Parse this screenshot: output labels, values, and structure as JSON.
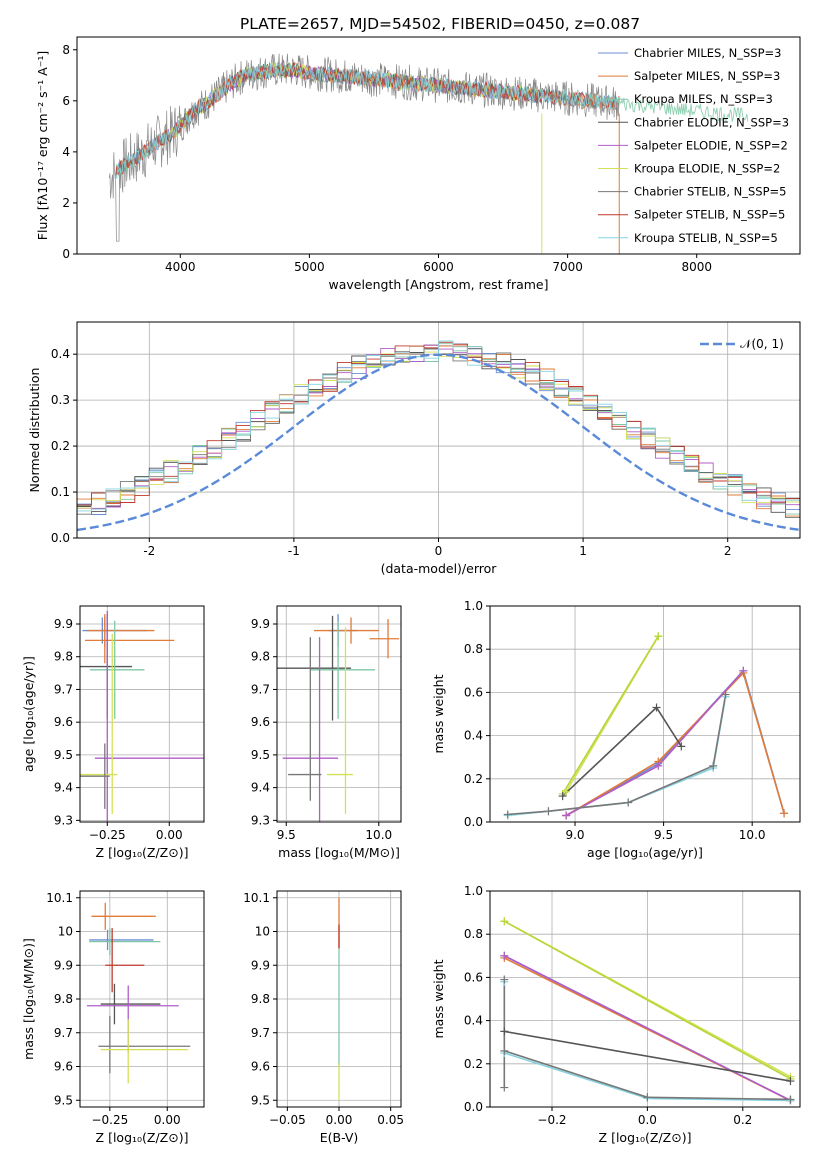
{
  "page_title": "PLATE=2657, MJD=54502, FIBERID=0450, z=0.087",
  "colors": {
    "series": [
      "#6a8fd0",
      "#e07b39",
      "#7fc8a6",
      "#555555",
      "#b15dc8",
      "#d4e157",
      "#777777",
      "#c0392b",
      "#86d3e0"
    ],
    "gaussian": "#5b8ad8",
    "grid": "#b0b0b0"
  },
  "chart_data": [
    {
      "id": "spectrum",
      "type": "line",
      "title": "PLATE=2657, MJD=54502, FIBERID=0450, z=0.087",
      "xlabel": "wavelength [Angstrom, rest frame]",
      "ylabel": "Flux [fλ10⁻¹⁷ erg cm⁻² s⁻¹ A⁻¹]",
      "xlim": [
        3200,
        8800
      ],
      "ylim": [
        0,
        8.5
      ],
      "xticks": [
        4000,
        5000,
        6000,
        7000,
        8000
      ],
      "yticks": [
        0,
        2,
        4,
        6,
        8
      ],
      "grid": false,
      "legend_position": "top-right",
      "legend": [
        "Chabrier MILES, N_SSP=3",
        "Salpeter MILES, N_SSP=3",
        "Kroupa MILES, N_SSP=3",
        "Chabrier ELODIE, N_SSP=3",
        "Salpeter ELODIE, N_SSP=2",
        "Kroupa ELODIE, N_SSP=2",
        "Chabrier STELIB, N_SSP=5",
        "Salpeter STELIB, N_SSP=5",
        "Kroupa STELIB, N_SSP=5"
      ],
      "continuum": {
        "x": [
          3500,
          3600,
          3700,
          3800,
          3900,
          4000,
          4100,
          4200,
          4300,
          4400,
          4500,
          4600,
          4700,
          4800,
          4900,
          5000,
          5200,
          5400,
          5600,
          5800,
          6000,
          6200,
          6400,
          6600,
          6800,
          7000,
          7200,
          7400,
          7600,
          7800,
          8000,
          8200,
          8400
        ],
        "y": [
          3.2,
          3.6,
          3.9,
          4.3,
          4.6,
          5.0,
          5.6,
          5.9,
          6.3,
          6.7,
          7.0,
          7.1,
          7.2,
          7.2,
          7.2,
          7.1,
          7.0,
          6.9,
          6.8,
          6.7,
          6.6,
          6.5,
          6.4,
          6.3,
          6.2,
          6.1,
          6.0,
          5.9,
          5.8,
          5.7,
          5.6,
          5.5,
          5.4
        ]
      },
      "model_ranges": [
        [
          3500,
          7400
        ],
        [
          3500,
          7400
        ],
        [
          3500,
          8400
        ],
        [
          3900,
          6800
        ],
        [
          3900,
          6800
        ],
        [
          3900,
          6800
        ],
        [
          3500,
          7400
        ],
        [
          3500,
          7400
        ],
        [
          3500,
          7400
        ]
      ],
      "observed_range": [
        3450,
        7400
      ]
    },
    {
      "id": "residuals",
      "type": "line",
      "xlabel": "(data-model)/error",
      "ylabel": "Normed distribution",
      "xlim": [
        -2.5,
        2.5
      ],
      "ylim": [
        0,
        0.47
      ],
      "xticks": [
        -2,
        -1,
        0,
        1,
        2
      ],
      "yticks": [
        0.0,
        0.1,
        0.2,
        0.3,
        0.4
      ],
      "grid": true,
      "legend_position": "top-right",
      "legend": [
        "𝒩(0, 1)"
      ],
      "bin_width": 0.1
    },
    {
      "id": "age-vs-Z",
      "type": "scatter",
      "xlabel": "Z [log₁₀(Z/Z⊙)]",
      "ylabel": "age  [log₁₀(age/yr)]",
      "xlim": [
        -0.36,
        0.14
      ],
      "ylim": [
        9.295,
        9.955
      ],
      "xticks": [
        -0.25,
        0.0
      ],
      "xtick_labels": [
        "−0.25",
        "0.00"
      ],
      "yticks": [
        9.3,
        9.4,
        9.5,
        9.6,
        9.7,
        9.8,
        9.9
      ],
      "grid": true,
      "points": [
        {
          "x": -0.27,
          "y": 9.88,
          "xerr": [
            0.08,
            0.18
          ],
          "yerr": [
            0.04,
            0.04
          ],
          "c": 0
        },
        {
          "x": -0.26,
          "y": 9.88,
          "xerr": [
            0.07,
            0.2
          ],
          "yerr": [
            0.05,
            0.05
          ],
          "c": 1
        },
        {
          "x": -0.26,
          "y": 9.85,
          "xerr": [
            0.08,
            0.28
          ],
          "yerr": [
            0.07,
            0.07
          ],
          "c": 1
        },
        {
          "x": -0.25,
          "y": 9.77,
          "xerr": [
            0.3,
            0.1
          ],
          "yerr": [
            0.16,
            0.16
          ],
          "c": 3
        },
        {
          "x": -0.22,
          "y": 9.76,
          "xerr": [
            0.1,
            0.12
          ],
          "yerr": [
            0.15,
            0.15
          ],
          "c": 2
        },
        {
          "x": -0.25,
          "y": 9.49,
          "xerr": [
            0.05,
            0.4
          ],
          "yerr": [
            0.4,
            0.45
          ],
          "c": 4
        },
        {
          "x": -0.23,
          "y": 9.44,
          "xerr": [
            0.2,
            0.02
          ],
          "yerr": [
            0.12,
            0.43
          ],
          "c": 5
        },
        {
          "x": -0.26,
          "y": 9.435,
          "xerr": [
            0.25,
            0.02
          ],
          "yerr": [
            0.1,
            0.1
          ],
          "c": 6
        }
      ]
    },
    {
      "id": "age-vs-mass",
      "type": "scatter",
      "xlabel": "mass [log₁₀(M/M⊙)]",
      "ylabel": "",
      "xlim": [
        9.45,
        10.12
      ],
      "ylim": [
        9.295,
        9.955
      ],
      "xticks": [
        9.5,
        10.0
      ],
      "xtick_labels": [
        "9.5",
        "10.0"
      ],
      "yticks": [
        9.3,
        9.4,
        9.5,
        9.6,
        9.7,
        9.8,
        9.9
      ],
      "grid": true,
      "points": [
        {
          "x": 9.78,
          "y": 9.88,
          "xerr": [
            0.05,
            0.1
          ],
          "yerr": [
            0.05,
            0.05
          ],
          "c": 0
        },
        {
          "x": 9.85,
          "y": 9.88,
          "xerr": [
            0.2,
            0.15
          ],
          "yerr": [
            0.04,
            0.04
          ],
          "c": 1
        },
        {
          "x": 10.05,
          "y": 9.855,
          "xerr": [
            0.1,
            0.06
          ],
          "yerr": [
            0.06,
            0.06
          ],
          "c": 1
        },
        {
          "x": 9.75,
          "y": 9.765,
          "xerr": [
            0.35,
            0.1
          ],
          "yerr": [
            0.16,
            0.16
          ],
          "c": 3
        },
        {
          "x": 9.78,
          "y": 9.76,
          "xerr": [
            0.15,
            0.2
          ],
          "yerr": [
            0.15,
            0.15
          ],
          "c": 2
        },
        {
          "x": 9.68,
          "y": 9.49,
          "xerr": [
            0.2,
            0.1
          ],
          "yerr": [
            0.37,
            0.37
          ],
          "c": 4
        },
        {
          "x": 9.82,
          "y": 9.44,
          "xerr": [
            0.1,
            0.04
          ],
          "yerr": [
            0.12,
            0.45
          ],
          "c": 5
        },
        {
          "x": 9.63,
          "y": 9.44,
          "xerr": [
            0.12,
            0.06
          ],
          "yerr": [
            0.08,
            0.42
          ],
          "c": 6
        }
      ]
    },
    {
      "id": "mass-weight-vs-age",
      "type": "line",
      "xlabel": "age  [log₁₀(age/yr)]",
      "ylabel": "mass weight",
      "xlim": [
        8.52,
        10.27
      ],
      "ylim": [
        0,
        1.0
      ],
      "xticks": [
        9.0,
        9.5,
        10.0
      ],
      "xtick_labels": [
        "9.0",
        "9.5",
        "10.0"
      ],
      "yticks": [
        0.0,
        0.2,
        0.4,
        0.6,
        0.8,
        1.0
      ],
      "grid": true,
      "series": [
        {
          "c": 0,
          "x": [
            8.95,
            9.47,
            9.95,
            10.18
          ],
          "y": [
            0.03,
            0.27,
            0.7,
            0.04
          ]
        },
        {
          "c": 1,
          "x": [
            8.95,
            9.47,
            9.95,
            10.18
          ],
          "y": [
            0.03,
            0.28,
            0.69,
            0.04
          ]
        },
        {
          "c": 4,
          "x": [
            8.95,
            9.47,
            9.95
          ],
          "y": [
            0.03,
            0.26,
            0.7
          ]
        },
        {
          "c": 5,
          "x": [
            8.95,
            9.47
          ],
          "y": [
            0.14,
            0.86
          ]
        },
        {
          "c": 9,
          "x": [
            8.93,
            9.47
          ],
          "y": [
            0.13,
            0.86
          ]
        },
        {
          "c": 3,
          "x": [
            8.93,
            9.46,
            9.6
          ],
          "y": [
            0.12,
            0.53,
            0.35
          ]
        },
        {
          "c": 8,
          "x": [
            8.62,
            8.85,
            9.3,
            9.78,
            9.85
          ],
          "y": [
            0.03,
            0.05,
            0.09,
            0.25,
            0.58
          ]
        },
        {
          "c": 6,
          "x": [
            8.62,
            8.85,
            9.3,
            9.78,
            9.85
          ],
          "y": [
            0.035,
            0.05,
            0.09,
            0.26,
            0.59
          ]
        }
      ]
    },
    {
      "id": "mass-vs-Z",
      "type": "scatter",
      "xlabel": "Z [log₁₀(Z/Z⊙)]",
      "ylabel": "mass [log₁₀(M/M⊙)]",
      "xlim": [
        -0.38,
        0.16
      ],
      "ylim": [
        9.48,
        10.12
      ],
      "xticks": [
        -0.25,
        0.0
      ],
      "xtick_labels": [
        "−0.25",
        "0.00"
      ],
      "yticks": [
        9.5,
        9.6,
        9.7,
        9.8,
        9.9,
        10.0,
        10.1
      ],
      "grid": true,
      "points": [
        {
          "x": -0.27,
          "y": 10.045,
          "xerr": [
            0.06,
            0.22
          ],
          "yerr": [
            0.04,
            0.04
          ],
          "c": 1
        },
        {
          "x": -0.26,
          "y": 9.975,
          "xerr": [
            0.08,
            0.2
          ],
          "yerr": [
            0.03,
            0.03
          ],
          "c": 0
        },
        {
          "x": -0.25,
          "y": 9.97,
          "xerr": [
            0.09,
            0.22
          ],
          "yerr": [
            0.04,
            0.04
          ],
          "c": 2
        },
        {
          "x": -0.24,
          "y": 9.9,
          "xerr": [
            0.03,
            0.14
          ],
          "yerr": [
            0.08,
            0.11
          ],
          "c": 7
        },
        {
          "x": -0.23,
          "y": 9.785,
          "xerr": [
            0.06,
            0.2
          ],
          "yerr": [
            0.06,
            0.06
          ],
          "c": 3
        },
        {
          "x": -0.17,
          "y": 9.78,
          "xerr": [
            0.18,
            0.22
          ],
          "yerr": [
            0.14,
            0.06
          ],
          "c": 4
        },
        {
          "x": -0.25,
          "y": 9.66,
          "xerr": [
            0.05,
            0.35
          ],
          "yerr": [
            0.08,
            0.09
          ],
          "c": 6
        },
        {
          "x": -0.17,
          "y": 9.65,
          "xerr": [
            0.12,
            0.26
          ],
          "yerr": [
            0.1,
            0.09
          ],
          "c": 5
        }
      ]
    },
    {
      "id": "mass-vs-EBV",
      "type": "scatter",
      "xlabel": "E(B-V)",
      "ylabel": "",
      "xlim": [
        -0.06,
        0.06
      ],
      "ylim": [
        9.48,
        10.12
      ],
      "xticks": [
        -0.05,
        0.0,
        0.05
      ],
      "xtick_labels": [
        "−0.05",
        "0.00",
        "0.05"
      ],
      "yticks": [
        9.5,
        9.6,
        9.7,
        9.8,
        9.9,
        10.0,
        10.1
      ],
      "grid": true,
      "points": [
        {
          "x": 0.0,
          "y": 9.95,
          "yerr": [
            0.0,
            0.15
          ],
          "c": 1
        },
        {
          "x": 0.0,
          "y": 9.95,
          "yerr": [
            0.0,
            0.07
          ],
          "c": 7
        },
        {
          "x": 0.0,
          "y": 9.75,
          "yerr": [
            0.15,
            0.2
          ],
          "c": 2
        },
        {
          "x": 0.0,
          "y": 9.55,
          "yerr": [
            0.05,
            0.06
          ],
          "c": 5
        }
      ]
    },
    {
      "id": "mass-weight-vs-Z",
      "type": "line",
      "xlabel": "Z [log₁₀(Z/Z⊙)]",
      "ylabel": "mass weight",
      "xlim": [
        -0.33,
        0.32
      ],
      "ylim": [
        0,
        1.0
      ],
      "xticks": [
        -0.2,
        0.0,
        0.2
      ],
      "xtick_labels": [
        "−0.2",
        "0.0",
        "0.2"
      ],
      "yticks": [
        0.0,
        0.2,
        0.4,
        0.6,
        0.8,
        1.0
      ],
      "grid": true,
      "series": [
        {
          "c": 0,
          "x": [
            -0.3,
            0.3
          ],
          "y": [
            0.7,
            0.03
          ]
        },
        {
          "c": 1,
          "x": [
            -0.3,
            0.3
          ],
          "y": [
            0.69,
            0.03
          ]
        },
        {
          "c": 4,
          "x": [
            -0.3,
            0.3
          ],
          "y": [
            0.7,
            0.03
          ]
        },
        {
          "c": 5,
          "x": [
            -0.3,
            0.3
          ],
          "y": [
            0.86,
            0.14
          ]
        },
        {
          "c": 9,
          "x": [
            -0.3,
            0.3
          ],
          "y": [
            0.86,
            0.13
          ]
        },
        {
          "c": 3,
          "x": [
            -0.3,
            0.3
          ],
          "y": [
            0.35,
            0.12
          ]
        },
        {
          "c": 8,
          "x": [
            -0.3,
            -0.3,
            0.0,
            0.3
          ],
          "y": [
            0.58,
            0.25,
            0.04,
            0.03
          ]
        },
        {
          "c": 6,
          "x": [
            -0.3,
            -0.3,
            -0.3,
            0.0,
            0.3
          ],
          "y": [
            0.09,
            0.59,
            0.26,
            0.045,
            0.035
          ]
        }
      ]
    }
  ]
}
